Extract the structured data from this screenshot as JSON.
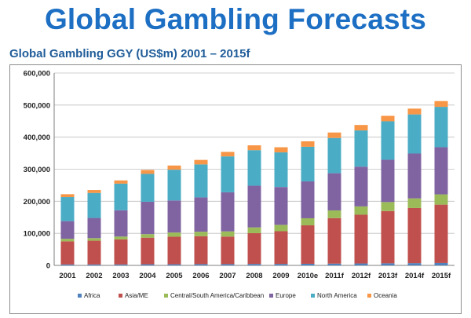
{
  "page": {
    "title": "Global Gambling Forecasts"
  },
  "chart_data": {
    "type": "bar",
    "stacked": true,
    "title": "Global Gambling GGY (US$m) 2001 – 2015f",
    "xlabel": "",
    "ylabel": "",
    "ylim": [
      0,
      600000
    ],
    "yticks": [
      0,
      100000,
      200000,
      300000,
      400000,
      500000,
      600000
    ],
    "ytick_labels": [
      "0",
      "100,000",
      "200,000",
      "300,000",
      "400,000",
      "500,000",
      "600,000"
    ],
    "grid": true,
    "legend_position": "bottom",
    "categories": [
      "2001",
      "2002",
      "2003",
      "2004",
      "2005",
      "2006",
      "2007",
      "2008",
      "2009",
      "2010e",
      "2011f",
      "2012f",
      "2013f",
      "2014f",
      "2015f"
    ],
    "series": [
      {
        "name": "Africa",
        "color": "#4f81bd",
        "values": [
          3000,
          3000,
          3000,
          3500,
          3500,
          4000,
          4000,
          4500,
          4500,
          5000,
          5500,
          6000,
          6500,
          7000,
          7500
        ]
      },
      {
        "name": "Asia/ME",
        "color": "#c0504d",
        "values": [
          72000,
          74000,
          78000,
          83000,
          86000,
          87000,
          86000,
          96000,
          102000,
          120000,
          142000,
          152000,
          163000,
          172000,
          182000
        ]
      },
      {
        "name": "Central/South America/Caribbean",
        "color": "#9bbb59",
        "values": [
          8000,
          8000,
          9000,
          11000,
          13000,
          14000,
          16000,
          18000,
          20000,
          22000,
          24000,
          26000,
          28000,
          30000,
          32000
        ]
      },
      {
        "name": "Europe",
        "color": "#8064a2",
        "values": [
          55000,
          63000,
          82000,
          101000,
          100000,
          107000,
          122000,
          130000,
          118000,
          115000,
          116000,
          124000,
          132000,
          140000,
          147000
        ]
      },
      {
        "name": "North America",
        "color": "#4bacc6",
        "values": [
          75000,
          78000,
          83000,
          87000,
          96000,
          103000,
          112000,
          111000,
          108000,
          108000,
          110000,
          113000,
          120000,
          122000,
          126000
        ]
      },
      {
        "name": "Oceania",
        "color": "#f79646",
        "values": [
          9000,
          9000,
          10000,
          12000,
          13000,
          14000,
          14000,
          15000,
          16000,
          17000,
          17000,
          17000,
          17000,
          18000,
          18000
        ]
      }
    ]
  }
}
